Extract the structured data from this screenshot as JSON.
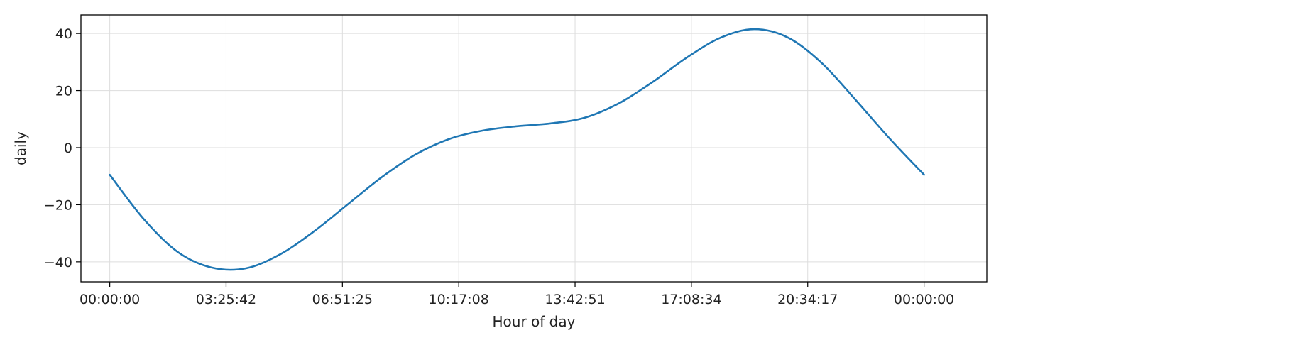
{
  "chart_data": {
    "type": "line",
    "title": "",
    "xlabel": "Hour of day",
    "ylabel": "daily",
    "x_tick_labels": [
      "00:00:00",
      "03:25:42",
      "06:51:25",
      "10:17:08",
      "13:42:51",
      "17:08:34",
      "20:34:17",
      "00:00:00"
    ],
    "y_tick_labels": [
      "40",
      "20",
      "0",
      "−20",
      "−40"
    ],
    "y_ticks": [
      40,
      20,
      0,
      -20,
      -40
    ],
    "xlim_hours": [
      -0.85,
      25.85
    ],
    "ylim": [
      -47,
      46.5
    ],
    "grid": true,
    "colors": {
      "line": "#1f77b4",
      "grid": "#dddddd",
      "frame": "#000000"
    },
    "series": [
      {
        "x_hours": [
          0,
          1,
          2,
          3,
          4,
          5,
          6,
          7,
          8,
          9,
          10,
          11,
          12,
          13,
          14,
          15,
          16,
          17,
          18,
          19,
          20,
          21,
          22,
          23,
          24
        ],
        "values": [
          -9.5,
          -25,
          -36.5,
          -42,
          -42.3,
          -37.5,
          -29.5,
          -20,
          -10.5,
          -2.5,
          3,
          6,
          7.5,
          8.5,
          10.5,
          15.5,
          23,
          31.5,
          38.5,
          41.5,
          38.5,
          29.5,
          16.5,
          3,
          -9.5
        ]
      }
    ]
  }
}
